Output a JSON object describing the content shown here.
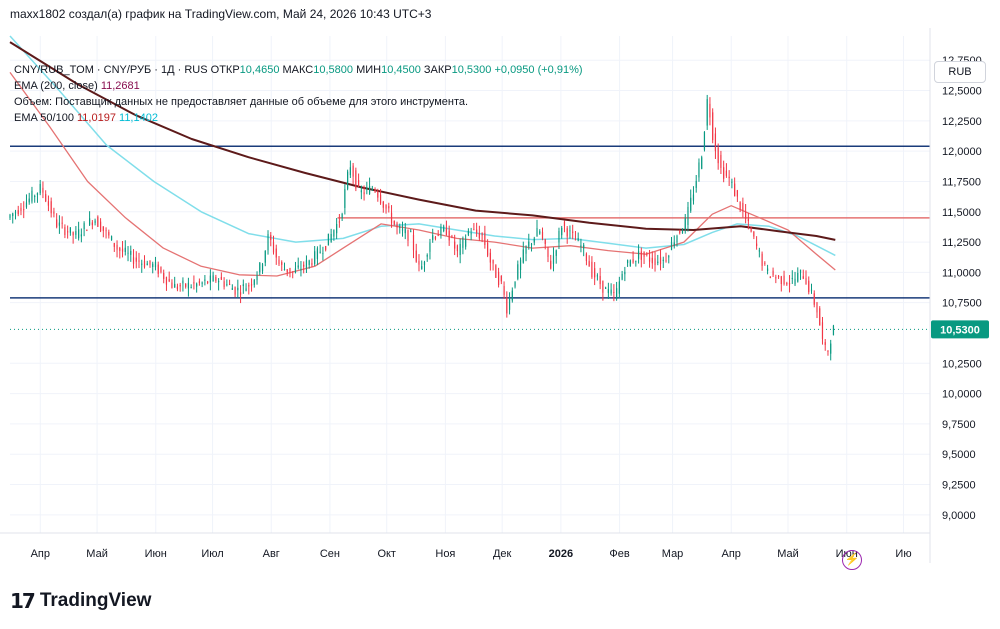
{
  "header": {
    "attribution": "maxx1802 создал(а) график на TradingView.com, Май 24, 2026 10:43 UTC+3"
  },
  "legend": {
    "symbol": "CNY/RUB_TOM · CNY/РУБ · 1Д · RUS",
    "open_label": "ОТКР",
    "open_value": "10,4650",
    "high_label": "МАКС",
    "high_value": "10,5800",
    "low_label": "МИН",
    "low_value": "10,4500",
    "close_label": "ЗАКР",
    "close_value": "10,5300",
    "change": "+0,0950 (+0,91%)",
    "ema200_label": "EMA (200, close)",
    "ema200_value": "11,2681",
    "volume_note": "Объем: Поставщик данных не предоставляет данные об объеме для этого инструмента.",
    "ema50_100_label": "EMA 50/100",
    "ema50_value": "11,0197",
    "ema100_value": "11,1402"
  },
  "currency": "RUB",
  "price_tag": "10,5300",
  "footer": {
    "brand": "TradingView"
  },
  "icons": {
    "flash": "flash-icon",
    "logo": "tradingview-logo-icon"
  },
  "colors": {
    "up": "#089981",
    "down": "#f23645",
    "ema200": "#5d1a1a",
    "ema50": "#e57373",
    "ema100": "#80deea",
    "hline": "#1a3b7a",
    "resistance": "#e57373",
    "grid": "#f0f3fa",
    "price_tag_bg": "#089981"
  },
  "chart_data": {
    "type": "candlestick",
    "timeframe": "1D",
    "ylim": [
      8.85,
      12.95
    ],
    "y_ticks": [
      {
        "value": 12.75,
        "label": "12,7500"
      },
      {
        "value": 12.5,
        "label": "12,5000"
      },
      {
        "value": 12.25,
        "label": "12,2500"
      },
      {
        "value": 12.0,
        "label": "12,0000"
      },
      {
        "value": 11.75,
        "label": "11,7500"
      },
      {
        "value": 11.5,
        "label": "11,5000"
      },
      {
        "value": 11.25,
        "label": "11,2500"
      },
      {
        "value": 11.0,
        "label": "11,0000"
      },
      {
        "value": 10.75,
        "label": "10,7500"
      },
      {
        "value": 10.25,
        "label": "10,2500"
      },
      {
        "value": 10.0,
        "label": "10,0000"
      },
      {
        "value": 9.75,
        "label": "9,7500"
      },
      {
        "value": 9.5,
        "label": "9,5000"
      },
      {
        "value": 9.25,
        "label": "9,2500"
      },
      {
        "value": 9.0,
        "label": "9,0000"
      }
    ],
    "x_ticks": [
      {
        "day": 10,
        "label": "Апр"
      },
      {
        "day": 40,
        "label": "Май"
      },
      {
        "day": 71,
        "label": "Июн"
      },
      {
        "day": 101,
        "label": "Июл"
      },
      {
        "day": 132,
        "label": "Авг"
      },
      {
        "day": 163,
        "label": "Сен"
      },
      {
        "day": 193,
        "label": "Окт"
      },
      {
        "day": 224,
        "label": "Ноя"
      },
      {
        "day": 254,
        "label": "Дек"
      },
      {
        "day": 285,
        "label": "2026",
        "bold": true
      },
      {
        "day": 316,
        "label": "Фев"
      },
      {
        "day": 344,
        "label": "Мар"
      },
      {
        "day": 375,
        "label": "Апр"
      },
      {
        "day": 405,
        "label": "Май"
      },
      {
        "day": 436,
        "label": "Июн"
      },
      {
        "day": 466,
        "label": "Ию"
      }
    ],
    "x_range": [
      -6,
      480
    ],
    "last_close": 10.53,
    "horizontal_lines": [
      {
        "value": 12.04,
        "color": "#1a3b7a",
        "from_day": -6
      },
      {
        "value": 10.79,
        "color": "#1a3b7a",
        "from_day": -6
      },
      {
        "value": 11.45,
        "color": "#e57373",
        "from_day": 167
      }
    ],
    "anchors": [
      {
        "day": -6,
        "v": 11.45
      },
      {
        "day": 2,
        "v": 11.55
      },
      {
        "day": 12,
        "v": 11.7
      },
      {
        "day": 20,
        "v": 11.4
      },
      {
        "day": 30,
        "v": 11.3
      },
      {
        "day": 40,
        "v": 11.45
      },
      {
        "day": 52,
        "v": 11.2
      },
      {
        "day": 62,
        "v": 11.1
      },
      {
        "day": 72,
        "v": 11.05
      },
      {
        "day": 82,
        "v": 10.88
      },
      {
        "day": 95,
        "v": 10.9
      },
      {
        "day": 105,
        "v": 10.95
      },
      {
        "day": 115,
        "v": 10.85
      },
      {
        "day": 122,
        "v": 10.9
      },
      {
        "day": 128,
        "v": 11.05
      },
      {
        "day": 132,
        "v": 11.3
      },
      {
        "day": 138,
        "v": 11.05
      },
      {
        "day": 145,
        "v": 11.0
      },
      {
        "day": 155,
        "v": 11.1
      },
      {
        "day": 163,
        "v": 11.25
      },
      {
        "day": 170,
        "v": 11.45
      },
      {
        "day": 175,
        "v": 11.9
      },
      {
        "day": 180,
        "v": 11.65
      },
      {
        "day": 188,
        "v": 11.7
      },
      {
        "day": 195,
        "v": 11.5
      },
      {
        "day": 200,
        "v": 11.35
      },
      {
        "day": 207,
        "v": 11.3
      },
      {
        "day": 212,
        "v": 11.0
      },
      {
        "day": 218,
        "v": 11.3
      },
      {
        "day": 226,
        "v": 11.35
      },
      {
        "day": 232,
        "v": 11.15
      },
      {
        "day": 238,
        "v": 11.35
      },
      {
        "day": 245,
        "v": 11.3
      },
      {
        "day": 250,
        "v": 11.05
      },
      {
        "day": 255,
        "v": 10.9
      },
      {
        "day": 258,
        "v": 10.7
      },
      {
        "day": 262,
        "v": 10.95
      },
      {
        "day": 268,
        "v": 11.2
      },
      {
        "day": 275,
        "v": 11.35
      },
      {
        "day": 281,
        "v": 11.05
      },
      {
        "day": 287,
        "v": 11.4
      },
      {
        "day": 292,
        "v": 11.3
      },
      {
        "day": 298,
        "v": 11.2
      },
      {
        "day": 303,
        "v": 11.0
      },
      {
        "day": 310,
        "v": 10.85
      },
      {
        "day": 315,
        "v": 10.8
      },
      {
        "day": 320,
        "v": 11.05
      },
      {
        "day": 328,
        "v": 11.15
      },
      {
        "day": 335,
        "v": 11.1
      },
      {
        "day": 341,
        "v": 11.1
      },
      {
        "day": 347,
        "v": 11.3
      },
      {
        "day": 352,
        "v": 11.4
      },
      {
        "day": 357,
        "v": 11.7
      },
      {
        "day": 361,
        "v": 12.0
      },
      {
        "day": 364,
        "v": 12.45
      },
      {
        "day": 367,
        "v": 12.1
      },
      {
        "day": 371,
        "v": 11.85
      },
      {
        "day": 376,
        "v": 11.75
      },
      {
        "day": 381,
        "v": 11.55
      },
      {
        "day": 385,
        "v": 11.4
      },
      {
        "day": 390,
        "v": 11.2
      },
      {
        "day": 395,
        "v": 11.0
      },
      {
        "day": 402,
        "v": 10.95
      },
      {
        "day": 408,
        "v": 10.92
      },
      {
        "day": 414,
        "v": 11.0
      },
      {
        "day": 418,
        "v": 10.85
      },
      {
        "day": 422,
        "v": 10.68
      },
      {
        "day": 425,
        "v": 10.4
      },
      {
        "day": 427,
        "v": 10.32
      },
      {
        "day": 430,
        "v": 10.53
      }
    ],
    "ema200": {
      "label": "EMA (200, close)",
      "last": 11.2681,
      "points": [
        [
          -6,
          12.9
        ],
        [
          30,
          12.55
        ],
        [
          60,
          12.3
        ],
        [
          90,
          12.1
        ],
        [
          120,
          11.95
        ],
        [
          150,
          11.82
        ],
        [
          180,
          11.7
        ],
        [
          210,
          11.6
        ],
        [
          240,
          11.51
        ],
        [
          270,
          11.47
        ],
        [
          300,
          11.41
        ],
        [
          330,
          11.36
        ],
        [
          355,
          11.35
        ],
        [
          380,
          11.38
        ],
        [
          400,
          11.34
        ],
        [
          420,
          11.3
        ],
        [
          430,
          11.2681
        ]
      ]
    },
    "ema50": {
      "label": "EMA 50",
      "last": 11.0197,
      "points": [
        [
          -6,
          12.65
        ],
        [
          15,
          12.2
        ],
        [
          35,
          11.75
        ],
        [
          55,
          11.45
        ],
        [
          75,
          11.2
        ],
        [
          95,
          11.05
        ],
        [
          115,
          10.98
        ],
        [
          135,
          10.97
        ],
        [
          155,
          11.05
        ],
        [
          170,
          11.2
        ],
        [
          190,
          11.4
        ],
        [
          210,
          11.35
        ],
        [
          230,
          11.28
        ],
        [
          250,
          11.25
        ],
        [
          270,
          11.2
        ],
        [
          290,
          11.22
        ],
        [
          310,
          11.18
        ],
        [
          330,
          11.15
        ],
        [
          350,
          11.25
        ],
        [
          365,
          11.48
        ],
        [
          375,
          11.55
        ],
        [
          390,
          11.45
        ],
        [
          405,
          11.35
        ],
        [
          420,
          11.15
        ],
        [
          430,
          11.0197
        ]
      ]
    },
    "ema100": {
      "label": "EMA 100",
      "last": 11.1402,
      "points": [
        [
          -6,
          12.95
        ],
        [
          20,
          12.5
        ],
        [
          45,
          12.05
        ],
        [
          70,
          11.75
        ],
        [
          95,
          11.5
        ],
        [
          120,
          11.32
        ],
        [
          145,
          11.25
        ],
        [
          170,
          11.28
        ],
        [
          190,
          11.38
        ],
        [
          210,
          11.4
        ],
        [
          230,
          11.35
        ],
        [
          250,
          11.3
        ],
        [
          270,
          11.27
        ],
        [
          290,
          11.28
        ],
        [
          310,
          11.24
        ],
        [
          330,
          11.2
        ],
        [
          350,
          11.23
        ],
        [
          365,
          11.33
        ],
        [
          378,
          11.4
        ],
        [
          395,
          11.38
        ],
        [
          410,
          11.3
        ],
        [
          420,
          11.22
        ],
        [
          430,
          11.1402
        ]
      ]
    }
  }
}
